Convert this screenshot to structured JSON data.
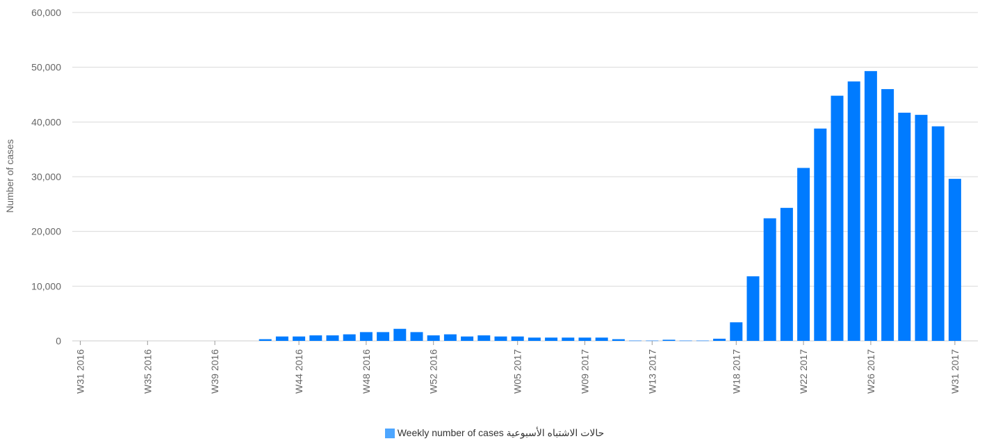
{
  "chart_data": {
    "type": "bar",
    "ylabel": "Number of cases",
    "ylim": [
      0,
      60000
    ],
    "yticks": [
      0,
      10000,
      20000,
      30000,
      40000,
      50000,
      60000
    ],
    "ytick_labels": [
      "0",
      "10,000",
      "20,000",
      "30,000",
      "40,000",
      "50,000",
      "60,000"
    ],
    "xtick_labels": [
      "W31 2016",
      "W35 2016",
      "W39 2016",
      "W44 2016",
      "W48 2016",
      "W52 2016",
      "W05 2017",
      "W09 2017",
      "W13 2017",
      "W18 2017",
      "W22 2017",
      "W26 2017",
      "W31 2017"
    ],
    "grid": true,
    "legend_position": "bottom",
    "bar_color": "#007bff",
    "legend_color": "#4da6ff",
    "series": [
      {
        "name": "حالات الاشتباه الأسبوعية Weekly number of cases",
        "values": [
          0,
          0,
          0,
          0,
          0,
          0,
          0,
          0,
          0,
          0,
          0,
          300,
          800,
          800,
          1000,
          1000,
          1200,
          1600,
          1600,
          2200,
          1600,
          1000,
          1200,
          800,
          1000,
          800,
          800,
          600,
          600,
          600,
          600,
          600,
          300,
          50,
          50,
          200,
          50,
          50,
          400,
          3400,
          11800,
          22400,
          24300,
          31600,
          38800,
          44800,
          47400,
          49300,
          46000,
          41700,
          41300,
          39200,
          29600
        ]
      }
    ]
  }
}
